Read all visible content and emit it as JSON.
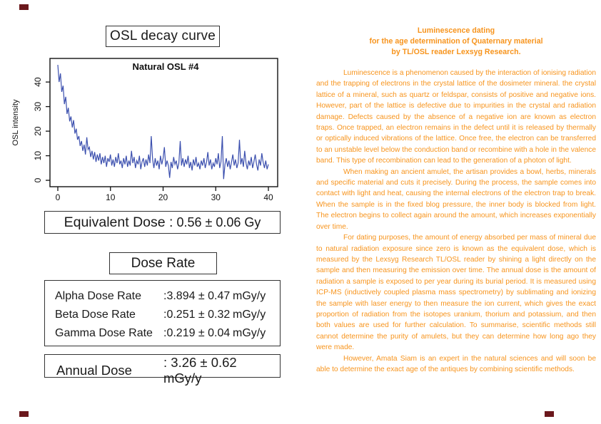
{
  "colors": {
    "accent_orange": "#f7941d",
    "curve_blue": "#3b4fae",
    "box_border": "#333333",
    "corner_mark": "#6b181c",
    "text_black": "#1a1a1a"
  },
  "left_panel": {
    "title": "OSL decay curve",
    "equivalent_dose": {
      "label": "Equivalent Dose :",
      "value": "0.56 ± 0.06",
      "unit": "Gy"
    },
    "dose_rate_title": "Dose Rate",
    "dose_rates": [
      {
        "label": "Alpha Dose Rate",
        "value": ":3.894 ± 0.47",
        "unit": "mGy/y"
      },
      {
        "label": "Beta Dose Rate",
        "value": ":0.251 ± 0.32",
        "unit": "mGy/y"
      },
      {
        "label": "Gamma Dose Rate",
        "value": ":0.219 ± 0.04",
        "unit": "mGy/y"
      }
    ],
    "annual_dose": {
      "label": "Annual Dose",
      "value": ": 3.26 ± 0.62",
      "unit": "mGy/y"
    }
  },
  "chart_data": {
    "type": "line",
    "title": "Natural OSL #4",
    "xlabel": "",
    "ylabel": "OSL intensity",
    "x_ticks": [
      0,
      10,
      20,
      30,
      40
    ],
    "y_ticks": [
      0,
      10,
      20,
      30,
      40
    ],
    "xlim": [
      -1.49,
      41.76
    ],
    "ylim": [
      -2.6,
      49.6
    ],
    "grid": false,
    "legend": "none",
    "line_color": "#3b4fae",
    "description": "Noisy OSL decay: starts near 47, decays exponentially to a plateau around 5-10 with occasional spikes to ~18 and dips near 0",
    "series": [
      {
        "name": "Natural OSL #4",
        "x_start": 0,
        "x_step": 0.25,
        "y": [
          47,
          40,
          43.5,
          36,
          38.5,
          31,
          34,
          27,
          29.5,
          24,
          26,
          21.5,
          24.5,
          19,
          21,
          16.5,
          18,
          14,
          16,
          12,
          14.5,
          10.5,
          17.5,
          12.5,
          13.5,
          9.5,
          12,
          8.5,
          11.5,
          7.5,
          10.5,
          8,
          11,
          6.5,
          9.5,
          7,
          10,
          5.5,
          9,
          7.5,
          10.5,
          6,
          8.5,
          5.5,
          9.5,
          7,
          11,
          6.5,
          8,
          5,
          9,
          6.5,
          10,
          5.5,
          8,
          6,
          12,
          7,
          9.5,
          5,
          8,
          6.5,
          10,
          4.5,
          7.5,
          9,
          5.5,
          8.5,
          6,
          10.5,
          7,
          18,
          8.5,
          5,
          9,
          6,
          8,
          4.5,
          10,
          6.5,
          9,
          13.5,
          5.5,
          8,
          6,
          1,
          7.5,
          5,
          9.5,
          6.5,
          8,
          4.5,
          7,
          16,
          6,
          9,
          5.5,
          8.5,
          6.5,
          10,
          5,
          7.5,
          4,
          8.5,
          6,
          9.5,
          5.5,
          7,
          4.5,
          8,
          6,
          9,
          5,
          7.5,
          11.5,
          6,
          8.5,
          4.5,
          7,
          5.5,
          9,
          6.5,
          11,
          5,
          7.5,
          18,
          0.5,
          6.5,
          9,
          5.5,
          8,
          4.5,
          7.5,
          10.5,
          6,
          8.5,
          5,
          7,
          16.5,
          6.5,
          9,
          5.5,
          12,
          7,
          4.5,
          8,
          6,
          9.5,
          5,
          7.5,
          10.5,
          6.5,
          4,
          8.5,
          6,
          11,
          7.5,
          5,
          8,
          4.5,
          6.5
        ]
      }
    ]
  },
  "article": {
    "title_lines": [
      "Luminescence dating",
      "for the age determination of Quaternary material",
      "by TL/OSL reader Lexsyg Research."
    ],
    "paragraphs": [
      "Luminescence is a phenomenon caused by the interaction of ionising radiation and the trapping of electrons in the crystal lattice of the dosimeter mineral. the crystal lattice of a mineral, such as quartz or feldspar, consists of positive and negative ions. However, part of the lattice is defective due to impurities in the crystal and radiation damage. Defects caused by the absence of a negative ion are known as electron traps. Once trapped, an electron remains in the defect until it is released by thermally or optically induced vibrations of the lattice. Once free, the electron can be transferred to an unstable level below the conduction band or recombine with a hole in the valence band. This type of recombination can lead to the generation of a photon of light.",
      "When making an ancient amulet, the artisan provides a bowl, herbs, minerals and specific material and cuts it precisely. During the process, the sample comes into contact with light and heat, causing the internal electrons of the electron trap to break. When the sample is in the fixed blog pressure, the inner body is blocked from light. The electron begins to collect again around the amount, which increases exponentially over time.",
      "For dating purposes, the amount of energy absorbed per mass of mineral due to natural radiation exposure since zero is known as the equivalent dose, which is measured by the Lexsyg Research TL/OSL reader by shining a light directly on the sample and then measuring the emission over time. The annual dose is the amount of radiation a sample is exposed to per year during its burial period. It is measured using ICP-MS (inductively coupled plasma mass spectrometry) by sublimating and ionizing the sample with laser energy to then measure the ion current, which gives the exact proportion of radiation from the isotopes uranium, thorium and potassium, and then both values are used for further calculation. To summarise, scientific methods still cannot determine the purity of amulets, but they can determine how long ago they were made.",
      "However, Amata Siam is an expert in the natural sciences and will soon be able to determine the exact age of the antiques by combining scientific methods."
    ]
  }
}
